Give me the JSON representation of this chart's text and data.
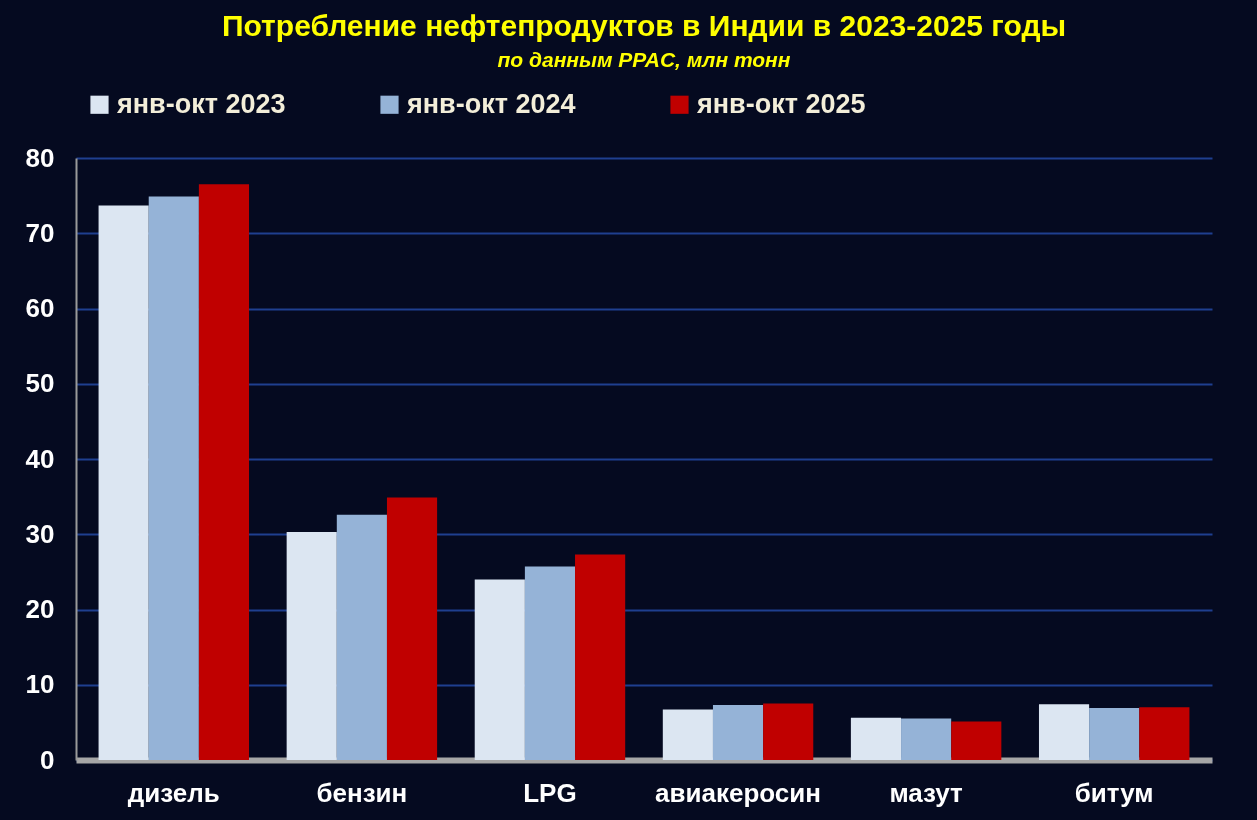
{
  "chart_data": {
    "type": "bar",
    "title": "Потребление нефтепродуктов в Индии в 2023-2025 годы",
    "subtitle": "по данным PPAC, млн тонн",
    "categories": [
      "дизель",
      "бензин",
      "LPG",
      "авиакеросин",
      "мазут",
      "битум"
    ],
    "series": [
      {
        "name": "янв-окт 2023",
        "color": "#dce6f2",
        "values": [
          73.7,
          30.3,
          24.0,
          6.7,
          5.6,
          7.4
        ]
      },
      {
        "name": "янв-окт 2024",
        "color": "#95b3d7",
        "values": [
          74.9,
          32.6,
          25.7,
          7.3,
          5.5,
          6.9
        ]
      },
      {
        "name": "янв-окт 2025",
        "color": "#c00000",
        "values": [
          76.5,
          34.9,
          27.3,
          7.5,
          5.1,
          7.0
        ]
      }
    ],
    "ylim": [
      0,
      80
    ],
    "yticks": [
      0,
      10,
      20,
      30,
      40,
      50,
      60,
      70,
      80
    ],
    "grid": "y",
    "legend": "top"
  }
}
